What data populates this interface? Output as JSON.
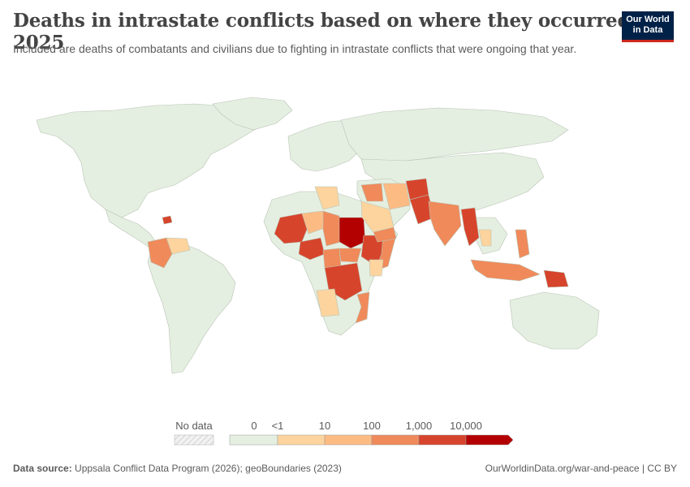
{
  "title": "Deaths in intrastate conflicts based on where they occurred, 2025",
  "subtitle": "Included are deaths of combatants and civilians due to fighting in intrastate conflicts that were ongoing that year.",
  "logo": {
    "line1": "Our World",
    "line2": "in Data"
  },
  "legend": {
    "no_data_label": "No data",
    "bins": [
      "0",
      "<1",
      "10",
      "100",
      "1,000",
      "10,000"
    ],
    "colors": [
      "#e5efe1",
      "#fdd49e",
      "#fdbb84",
      "#f08a5a",
      "#d7442c",
      "#b30000"
    ],
    "no_data_color": "#e8e8e8"
  },
  "footer": {
    "source_label": "Data source:",
    "source_text": "Uppsala Conflict Data Program (2026); geoBoundaries (2023)",
    "right_text": "OurWorldinData.org/war-and-peace | CC BY"
  },
  "colors": {
    "land_default": "#e5efe1",
    "border": "#b8c4b4",
    "title": "#444444",
    "logo_bg": "#002147",
    "logo_accent": "#ce261e"
  }
}
